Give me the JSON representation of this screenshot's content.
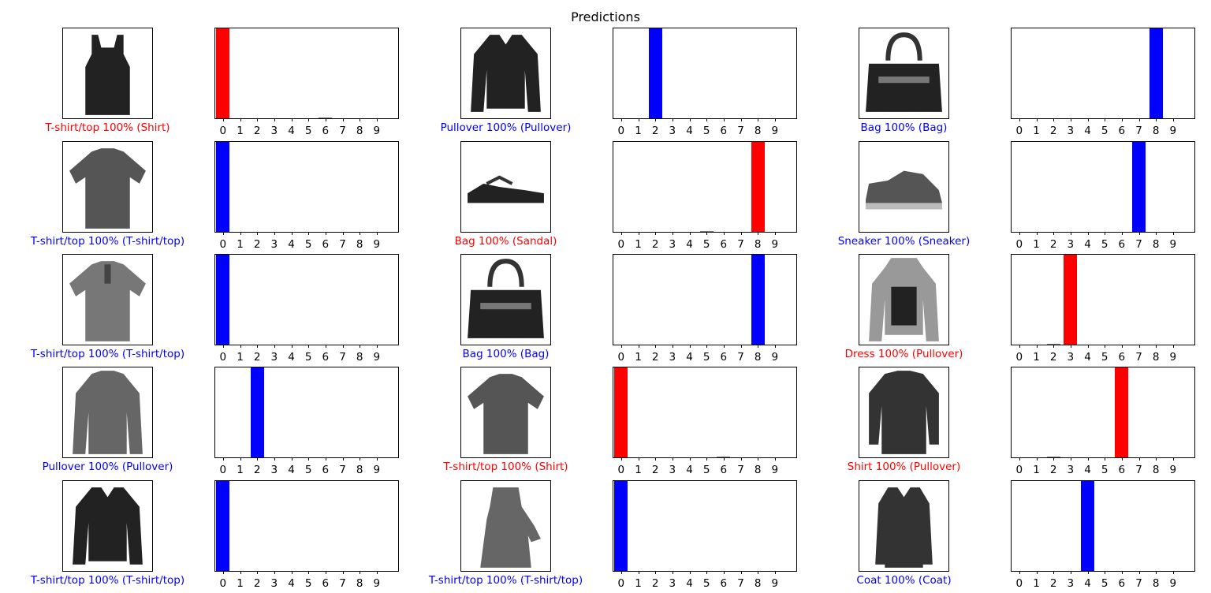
{
  "title": "Predictions",
  "colors": {
    "correct": "#0000ff",
    "wrong": "#ff0000"
  },
  "chart_data": {
    "type": "bar",
    "title": "Predictions",
    "categories": [
      "0",
      "1",
      "2",
      "3",
      "4",
      "5",
      "6",
      "7",
      "8",
      "9"
    ],
    "ylim": [
      0,
      1
    ],
    "grid": false,
    "panels": [
      {
        "image_icon": "tank-top-icon",
        "predicted": "T-shirt/top",
        "confidence": "100%",
        "true_label": "Shirt",
        "caption": "T-shirt/top 100% (Shirt)",
        "correct": false,
        "values": [
          1,
          0,
          0,
          0,
          0,
          0,
          0.002,
          0,
          0,
          0
        ]
      },
      {
        "image_icon": "long-sleeve-icon",
        "predicted": "Pullover",
        "confidence": "100%",
        "true_label": "Pullover",
        "caption": "Pullover 100% (Pullover)",
        "correct": true,
        "values": [
          0,
          0,
          1,
          0,
          0,
          0,
          0,
          0,
          0,
          0
        ]
      },
      {
        "image_icon": "handbag-icon",
        "predicted": "Bag",
        "confidence": "100%",
        "true_label": "Bag",
        "caption": "Bag 100% (Bag)",
        "correct": true,
        "values": [
          0,
          0,
          0,
          0,
          0,
          0,
          0,
          0,
          1,
          0
        ]
      },
      {
        "image_icon": "tshirt-icon",
        "predicted": "T-shirt/top",
        "confidence": "100%",
        "true_label": "T-shirt/top",
        "caption": "T-shirt/top 100% (T-shirt/top)",
        "correct": true,
        "values": [
          1,
          0,
          0,
          0,
          0,
          0,
          0,
          0,
          0,
          0
        ]
      },
      {
        "image_icon": "sandal-icon",
        "predicted": "Bag",
        "confidence": "100%",
        "true_label": "Sandal",
        "caption": "Bag 100% (Sandal)",
        "correct": false,
        "values": [
          0,
          0,
          0,
          0,
          0,
          0.002,
          0,
          0,
          1,
          0
        ]
      },
      {
        "image_icon": "sneaker-icon",
        "predicted": "Sneaker",
        "confidence": "100%",
        "true_label": "Sneaker",
        "caption": "Sneaker 100% (Sneaker)",
        "correct": true,
        "values": [
          0,
          0,
          0,
          0,
          0,
          0,
          0,
          1,
          0,
          0
        ]
      },
      {
        "image_icon": "polo-shirt-icon",
        "predicted": "T-shirt/top",
        "confidence": "100%",
        "true_label": "T-shirt/top",
        "caption": "T-shirt/top 100% (T-shirt/top)",
        "correct": true,
        "values": [
          1,
          0,
          0,
          0,
          0,
          0,
          0,
          0,
          0,
          0
        ]
      },
      {
        "image_icon": "handbag-icon",
        "predicted": "Bag",
        "confidence": "100%",
        "true_label": "Bag",
        "caption": "Bag 100% (Bag)",
        "correct": true,
        "values": [
          0,
          0,
          0,
          0,
          0,
          0,
          0,
          0,
          1,
          0
        ]
      },
      {
        "image_icon": "hoodie-icon",
        "predicted": "Dress",
        "confidence": "100%",
        "true_label": "Pullover",
        "caption": "Dress 100% (Pullover)",
        "correct": false,
        "values": [
          0,
          0,
          0.002,
          1,
          0,
          0,
          0,
          0,
          0,
          0
        ]
      },
      {
        "image_icon": "pullover-icon",
        "predicted": "Pullover",
        "confidence": "100%",
        "true_label": "Pullover",
        "caption": "Pullover 100% (Pullover)",
        "correct": true,
        "values": [
          0,
          0,
          1,
          0,
          0,
          0,
          0,
          0,
          0,
          0
        ]
      },
      {
        "image_icon": "tshirt-icon",
        "predicted": "T-shirt/top",
        "confidence": "100%",
        "true_label": "Shirt",
        "caption": "T-shirt/top 100% (Shirt)",
        "correct": false,
        "values": [
          1,
          0,
          0,
          0,
          0,
          0,
          0.002,
          0,
          0,
          0
        ]
      },
      {
        "image_icon": "shirt-icon",
        "predicted": "Shirt",
        "confidence": "100%",
        "true_label": "Pullover",
        "caption": "Shirt 100% (Pullover)",
        "correct": false,
        "values": [
          0,
          0,
          0.002,
          0,
          0,
          0,
          1,
          0,
          0,
          0
        ]
      },
      {
        "image_icon": "long-sleeve-icon",
        "predicted": "T-shirt/top",
        "confidence": "100%",
        "true_label": "T-shirt/top",
        "caption": "T-shirt/top 100% (T-shirt/top)",
        "correct": true,
        "values": [
          1,
          0,
          0,
          0,
          0,
          0,
          0,
          0,
          0,
          0
        ]
      },
      {
        "image_icon": "dress-icon",
        "predicted": "T-shirt/top",
        "confidence": "100%",
        "true_label": "T-shirt/top",
        "caption": "T-shirt/top 100% (T-shirt/top)",
        "correct": true,
        "values": [
          1,
          0,
          0,
          0,
          0,
          0,
          0,
          0,
          0,
          0
        ]
      },
      {
        "image_icon": "coat-icon",
        "predicted": "Coat",
        "confidence": "100%",
        "true_label": "Coat",
        "caption": "Coat 100% (Coat)",
        "correct": true,
        "values": [
          0,
          0,
          0,
          0,
          1,
          0,
          0,
          0,
          0,
          0
        ]
      }
    ]
  }
}
